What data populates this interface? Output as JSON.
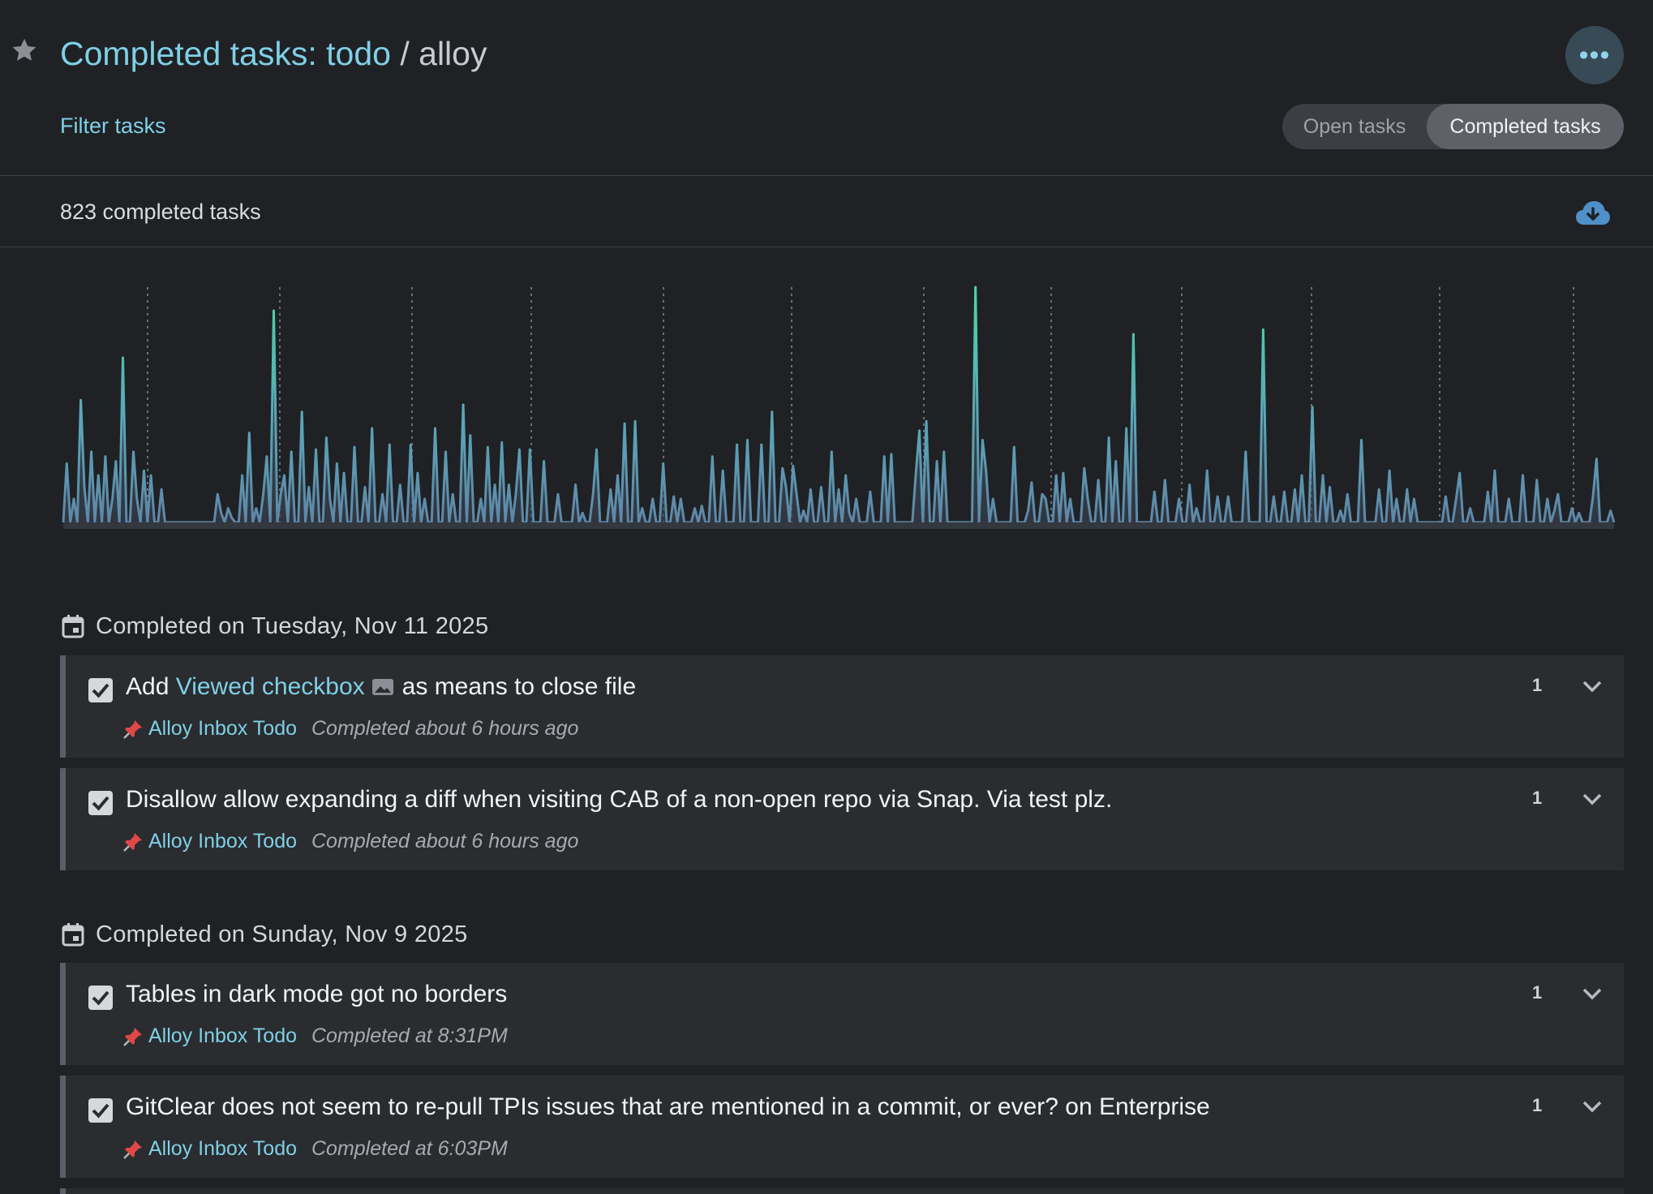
{
  "header": {
    "title_prefix": "Completed tasks: ",
    "title_todo": "todo",
    "title_sep": " / ",
    "title_repo": "alloy",
    "more_label": "•••",
    "filter_label": "Filter tasks",
    "toggle": {
      "open": "Open tasks",
      "completed": "Completed tasks",
      "active": "completed"
    }
  },
  "summary": {
    "count_text": "823 completed tasks"
  },
  "colors": {
    "accent": "#7fd0e6",
    "chart_low": "#5f87a8",
    "chart_high": "#49d7a4",
    "background": "#1f2124"
  },
  "chart_data": {
    "type": "area",
    "title": "",
    "xlabel": "",
    "ylabel": "",
    "ylim": [
      0,
      10
    ],
    "grid": "vertical-dotted",
    "values": [
      0,
      2.5,
      0,
      1,
      0,
      5.2,
      1.5,
      0,
      3,
      0,
      2,
      0,
      2.8,
      0,
      1,
      2.6,
      0,
      7,
      0,
      0,
      3,
      1,
      0,
      2.2,
      0,
      2,
      0,
      0,
      1.4,
      0,
      0,
      0,
      0,
      0,
      0,
      0,
      0,
      0,
      0,
      0,
      0,
      0,
      0,
      0,
      1.2,
      0.4,
      0,
      0.6,
      0.2,
      0,
      0,
      2,
      0,
      3.8,
      0,
      0.6,
      0,
      1.2,
      2.8,
      0,
      9,
      0,
      1.2,
      2,
      0,
      3,
      0,
      0,
      4.7,
      0,
      1.5,
      0,
      3.1,
      0,
      0,
      3.6,
      1,
      0,
      2.5,
      0,
      2.1,
      0,
      0,
      3.2,
      0,
      0,
      1.5,
      0,
      4,
      0,
      0,
      1.2,
      0,
      3.3,
      0,
      0,
      1.6,
      0,
      0,
      3.3,
      0,
      2.1,
      0,
      1,
      0,
      0,
      4,
      0,
      0,
      3,
      0,
      1.2,
      0,
      0,
      5,
      0,
      3.7,
      0,
      0,
      1,
      0,
      3.2,
      0,
      1.6,
      0,
      3.4,
      0,
      1.6,
      0,
      1.2,
      3.1,
      0,
      0,
      3.1,
      0,
      0,
      0,
      2.6,
      0,
      0,
      0,
      1.2,
      0,
      0,
      0,
      0,
      1.6,
      0,
      0.4,
      0,
      0,
      1.2,
      3.1,
      0,
      0,
      0,
      1.4,
      0,
      2,
      0,
      4.2,
      0,
      0,
      4.3,
      0,
      0.6,
      0,
      0,
      1,
      0,
      0,
      2.5,
      0,
      0,
      1.1,
      0,
      1,
      0,
      0,
      0,
      0.6,
      0,
      0.7,
      0,
      0,
      2.8,
      0,
      0,
      2.2,
      0,
      0,
      0,
      3.3,
      0,
      0,
      3.5,
      0,
      0,
      0,
      3.3,
      0,
      0,
      4.7,
      0,
      0,
      2.3,
      1.5,
      0,
      2.4,
      1.2,
      0,
      0.5,
      0,
      1.4,
      0,
      0,
      1.5,
      0,
      0,
      3,
      0,
      1.4,
      0,
      2,
      0.4,
      0,
      1,
      0,
      0,
      0,
      1.3,
      0,
      0,
      0,
      2.8,
      0,
      2.9,
      0,
      0,
      0,
      0,
      0,
      0,
      2.1,
      3.9,
      0,
      4.3,
      0,
      0,
      2.6,
      0,
      3,
      0,
      0,
      0,
      0,
      0,
      0,
      0,
      0,
      10,
      0,
      3.5,
      2.2,
      0,
      1,
      0,
      0,
      0,
      0,
      0,
      3.2,
      0,
      0,
      0,
      0.5,
      1.7,
      0,
      0,
      1.2,
      1,
      0,
      0,
      2,
      0,
      2.1,
      0,
      1,
      0,
      0,
      0,
      2.3,
      1,
      0,
      0,
      1.8,
      0,
      0,
      3.6,
      0,
      2.6,
      0,
      0,
      4,
      0,
      8,
      0,
      0,
      0,
      0,
      0,
      1.3,
      0,
      0,
      1.8,
      0,
      0,
      0,
      1,
      0,
      0,
      1.6,
      0,
      0.6,
      0,
      0,
      2.2,
      0,
      0,
      1.1,
      0,
      0,
      1.1,
      0,
      0,
      0,
      0,
      3,
      0,
      0,
      0,
      0,
      8.2,
      0,
      0,
      1.1,
      0,
      0,
      1.3,
      0,
      0,
      1.4,
      0,
      2,
      0,
      0,
      4.9,
      0,
      0,
      2,
      0,
      1.5,
      0,
      0,
      0.5,
      0,
      1.2,
      0,
      0,
      0,
      3.5,
      0,
      0,
      0,
      0,
      1.4,
      0,
      0,
      2.2,
      0,
      1,
      0,
      0,
      1.4,
      0,
      1,
      0,
      0,
      0,
      0,
      0,
      0,
      0,
      0,
      1.1,
      0,
      0,
      1,
      2.1,
      0,
      0,
      0.6,
      0,
      0,
      0,
      0,
      1.3,
      0,
      2.2,
      0,
      0,
      0,
      1,
      0,
      0,
      0,
      2,
      0,
      0,
      0,
      1.8,
      0,
      0,
      1,
      0,
      0.5,
      1.2,
      0,
      0,
      0,
      0.6,
      0,
      0.4,
      0,
      0,
      0,
      1.1,
      2.7,
      0,
      0,
      0,
      0.5,
      0
    ]
  },
  "groups": [
    {
      "heading": "Completed on Tuesday, Nov 11 2025",
      "tasks": [
        {
          "title_before": "Add ",
          "title_link": "Viewed checkbox",
          "title_after": " as means to close file",
          "project": "Alloy Inbox Todo",
          "when": "Completed about 6 hours ago",
          "count": "1",
          "icon": "image-icon"
        },
        {
          "title": "Disallow allow expanding a diff when visiting CAB of a non-open repo via Snap. Via test plz.",
          "project": "Alloy Inbox Todo",
          "when": "Completed about 6 hours ago",
          "count": "1"
        }
      ]
    },
    {
      "heading": "Completed on Sunday, Nov 9 2025",
      "tasks": [
        {
          "title": "Tables in dark mode got no borders",
          "project": "Alloy Inbox Todo",
          "when": "Completed at 8:31PM",
          "count": "1"
        },
        {
          "title": "GitClear does not seem to re-pull TPIs issues that are mentioned in a commit, or ever? on Enterprise",
          "project": "Alloy Inbox Todo",
          "when": "Completed at 6:03PM",
          "count": "1"
        }
      ]
    }
  ]
}
